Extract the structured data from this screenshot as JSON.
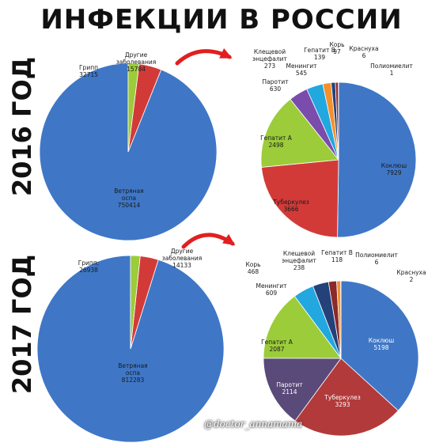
{
  "title": "ИНФЕКЦИИ В РОССИИ",
  "credit": "@doctor_annamama",
  "colors": {
    "blue": "#3f77c6",
    "red": "#d23a38",
    "green": "#9ccc3a",
    "purple": "#7a4cab",
    "cyan": "#22a7df",
    "orange": "#f3912f",
    "navy": "#24417a",
    "darkred": "#922a2a",
    "gray": "#9c9c9c",
    "pink": "#de8a8a",
    "arrow": "#e02020"
  },
  "chart_data": [
    {
      "type": "pie",
      "year_label": "2016 ГОД",
      "slices": [
        {
          "label": "Ветряная оспа",
          "value": 750414,
          "color": "#3f77c6"
        },
        {
          "label": "Грипп",
          "value": 32715,
          "color": "#d23a38"
        },
        {
          "label": "Другие заболевания",
          "value": 15784,
          "color": "#9ccc3a"
        }
      ]
    },
    {
      "type": "pie",
      "year_label": "2016 ГОД",
      "slices": [
        {
          "label": "Коклюш",
          "value": 7929,
          "color": "#3f77c6"
        },
        {
          "label": "Туберкулез",
          "value": 3666,
          "color": "#d23a38"
        },
        {
          "label": "Гепатит А",
          "value": 2498,
          "color": "#9ccc3a"
        },
        {
          "label": "Паротит",
          "value": 630,
          "color": "#7a4cab"
        },
        {
          "label": "Менингит",
          "value": 545,
          "color": "#22a7df"
        },
        {
          "label": "Клещевой энцефалит",
          "value": 273,
          "color": "#f3912f"
        },
        {
          "label": "Гепатит В",
          "value": 139,
          "color": "#24417a"
        },
        {
          "label": "Корь",
          "value": 97,
          "color": "#922a2a"
        },
        {
          "label": "Краснуха",
          "value": 6,
          "color": "#9c9c9c"
        },
        {
          "label": "Полиомиелит",
          "value": 1,
          "color": "#de8a8a"
        }
      ]
    },
    {
      "type": "pie",
      "year_label": "2017 ГОД",
      "slices": [
        {
          "label": "Ветряная оспа",
          "value": 812283,
          "color": "#3f77c6"
        },
        {
          "label": "Грипп;",
          "value": 26938,
          "color": "#d23a38"
        },
        {
          "label": "Другие заболевания",
          "value": 14133,
          "color": "#9ccc3a"
        }
      ]
    },
    {
      "type": "pie",
      "year_label": "2017 ГОД",
      "slices": [
        {
          "label": "Коклюш",
          "value": 5198,
          "color": "#3f77c6"
        },
        {
          "label": "Туберкулез",
          "value": 3293,
          "color": "#b23a3a"
        },
        {
          "label": "Паротит",
          "value": 2114,
          "color": "#5a4a7a"
        },
        {
          "label": "Гепатит А",
          "value": 2087,
          "color": "#9ccc3a"
        },
        {
          "label": "Менингит",
          "value": 609,
          "color": "#22a7df"
        },
        {
          "label": "Корь",
          "value": 468,
          "color": "#24417a"
        },
        {
          "label": "Клещевой энцефалит",
          "value": 238,
          "color": "#8a2a2a"
        },
        {
          "label": "Гепатит В",
          "value": 118,
          "color": "#f3912f"
        },
        {
          "label": "Полиомиелит",
          "value": 6,
          "color": "#9c9c9c"
        },
        {
          "label": "Краснуха",
          "value": 2,
          "color": "#de8a8a"
        }
      ]
    }
  ]
}
